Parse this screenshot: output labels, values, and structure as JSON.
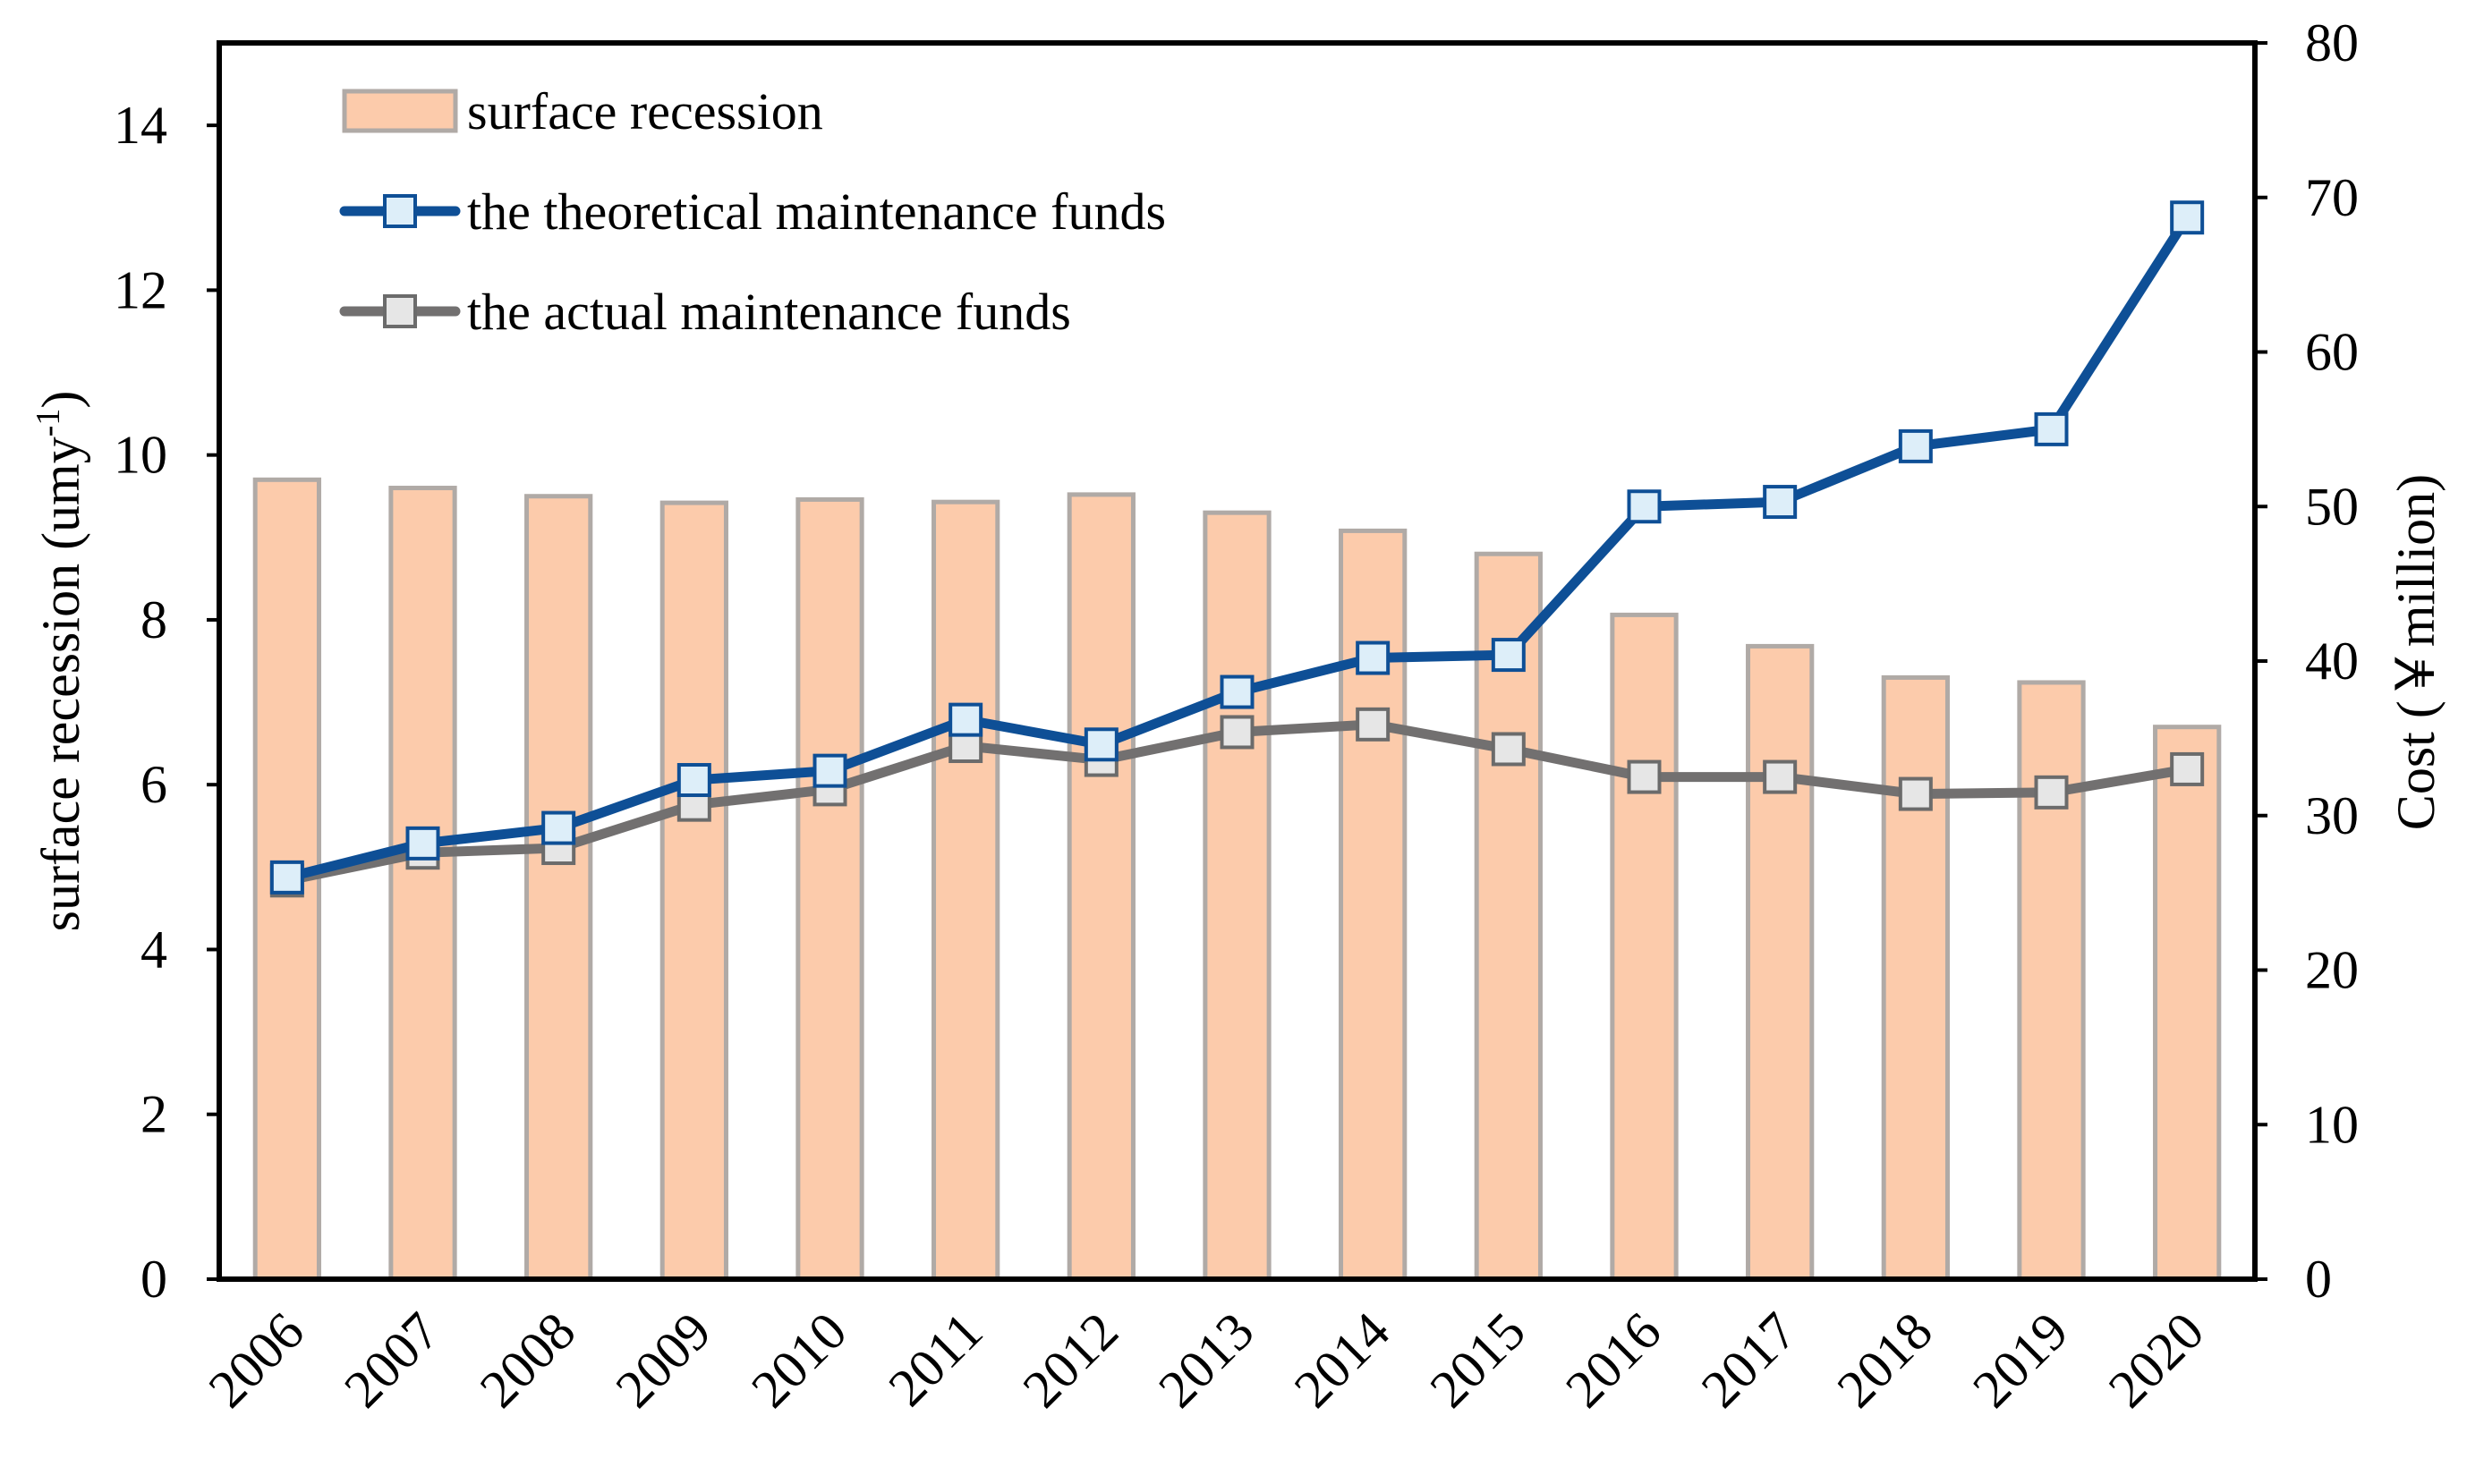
{
  "chart_data": {
    "type": "bar",
    "categories": [
      "2006",
      "2007",
      "2008",
      "2009",
      "2010",
      "2011",
      "2012",
      "2013",
      "2014",
      "2015",
      "2016",
      "2017",
      "2018",
      "2019",
      "2020"
    ],
    "series": [
      {
        "name": "surface recession",
        "type": "bar",
        "axis": "left",
        "values": [
          9.7,
          9.6,
          9.5,
          9.42,
          9.46,
          9.43,
          9.52,
          9.3,
          9.08,
          8.8,
          8.06,
          7.68,
          7.3,
          7.24,
          6.7
        ]
      },
      {
        "name": "the theoretical maintenance funds",
        "type": "line",
        "axis": "right",
        "values": [
          26,
          28.2,
          29.2,
          32.3,
          32.9,
          36.2,
          34.6,
          38,
          40.2,
          40.4,
          50,
          50.3,
          53.9,
          55,
          68.7
        ]
      },
      {
        "name": "the actual maintenance funds",
        "type": "line",
        "axis": "right",
        "values": [
          25.8,
          27.6,
          27.9,
          30.7,
          31.7,
          34.5,
          33.6,
          35.4,
          35.9,
          34.3,
          32.5,
          32.5,
          31.4,
          31.5,
          33
        ]
      }
    ],
    "ylabel": "surface recession  (umy",
    "ylabel_sup": "-1",
    "ylabel_end": ")",
    "y2label": "Cost (￥million)",
    "ylim": [
      0,
      15
    ],
    "yticks": [
      "0",
      "2",
      "4",
      "6",
      "8",
      "10",
      "12",
      "14"
    ],
    "y2lim": [
      0,
      80
    ],
    "y2ticks": [
      "0",
      "10",
      "20",
      "30",
      "40",
      "50",
      "60",
      "70",
      "80"
    ],
    "grid": false,
    "legend_position": "top-left",
    "colors": {
      "bar_fill": "#fccbab",
      "bar_stroke": "#b0aaa6",
      "theoretical_line": "#0e4f96",
      "theoretical_marker_fill": "#ddeef9",
      "actual_line": "#727070",
      "actual_marker_fill": "#e6e6e6"
    }
  }
}
